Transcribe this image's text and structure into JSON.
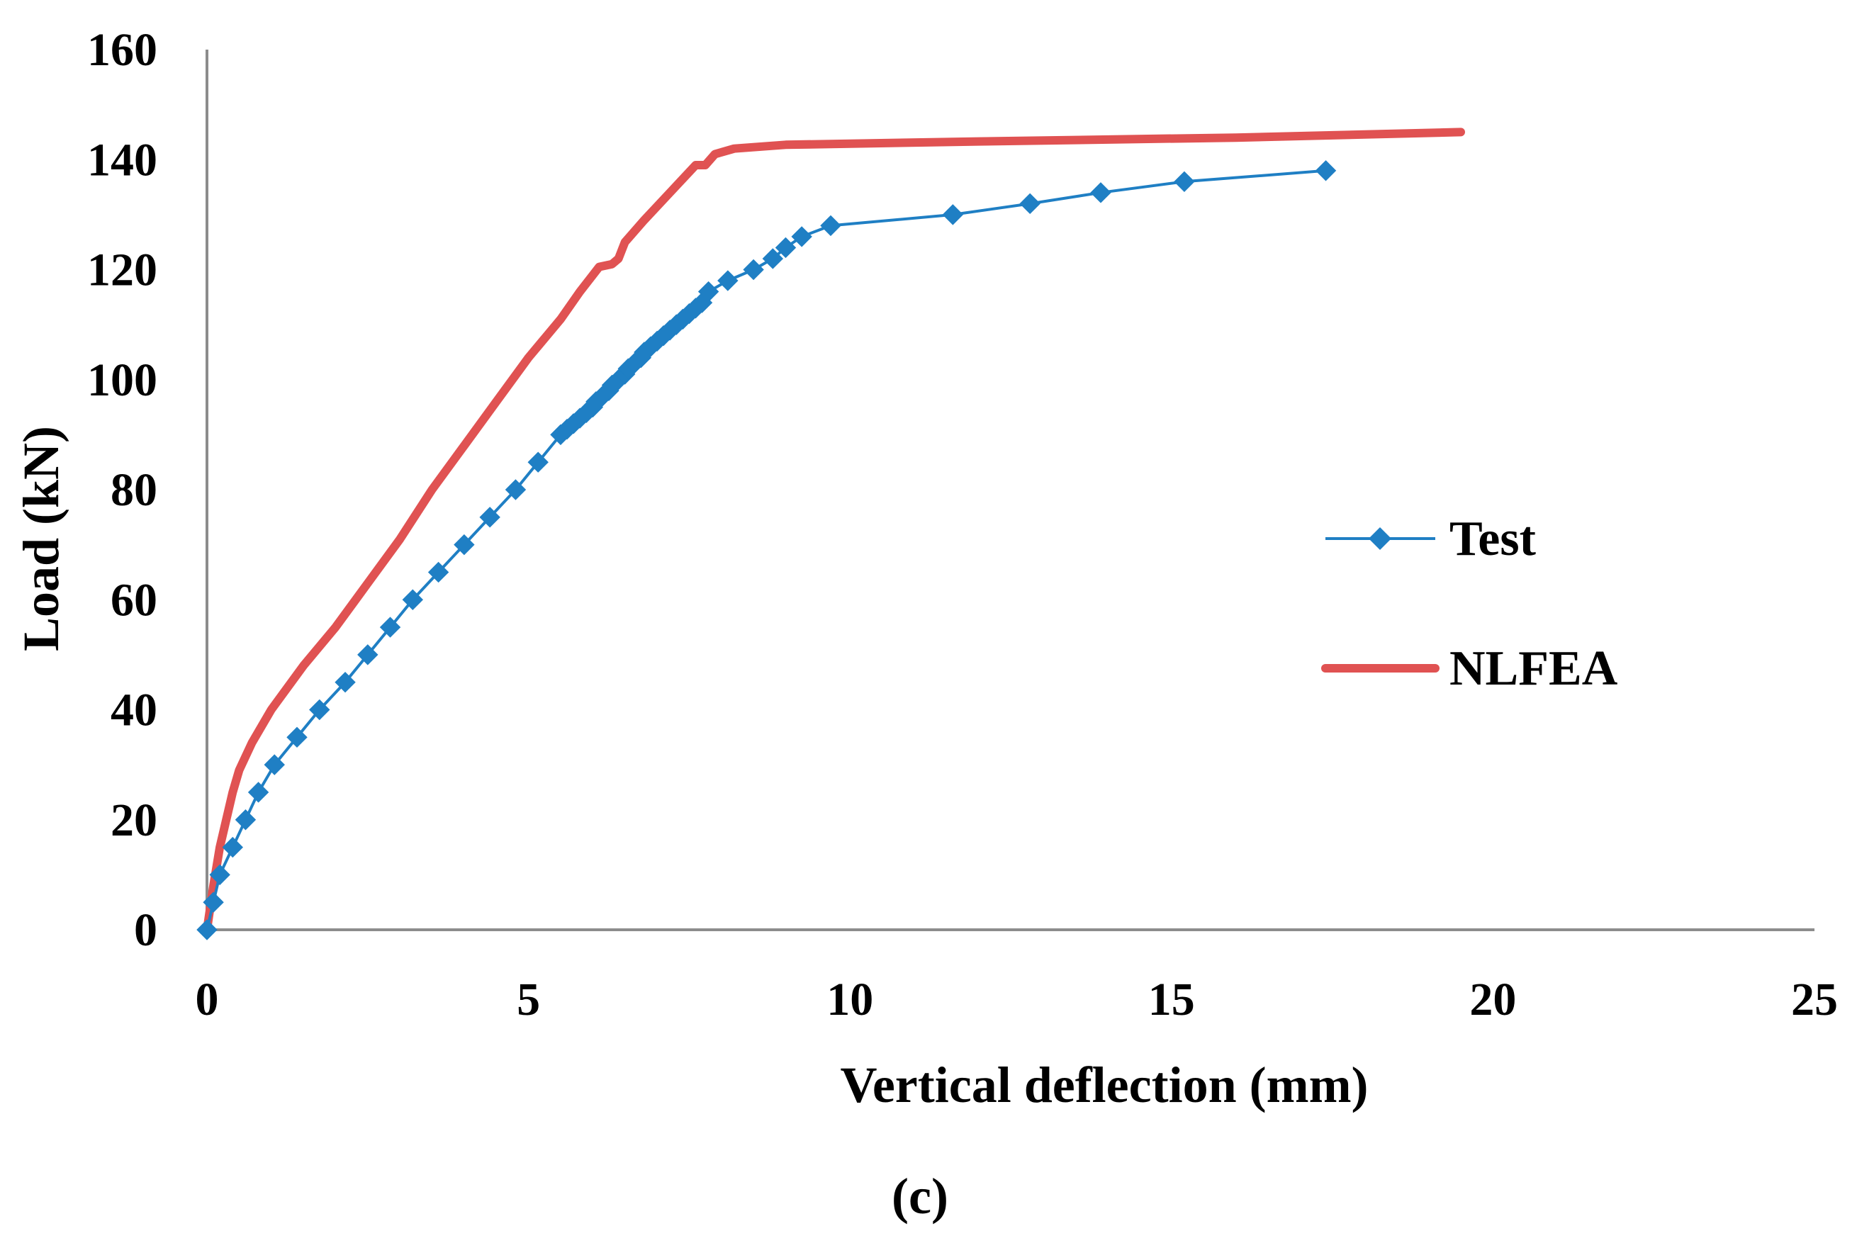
{
  "chart_data": {
    "type": "line",
    "title": "",
    "xlabel": "Vertical deflection (mm)",
    "ylabel": "Load (kN)",
    "xlim": [
      0,
      25
    ],
    "ylim": [
      0,
      160
    ],
    "xticks": [
      0,
      5,
      10,
      15,
      20,
      25
    ],
    "yticks": [
      0,
      20,
      40,
      60,
      80,
      100,
      120,
      140,
      160
    ],
    "xtick_labels": [
      "0",
      "5",
      "10",
      "15",
      "20",
      "25"
    ],
    "ytick_labels": [
      "0",
      "20",
      "40",
      "60",
      "80",
      "100",
      "120",
      "140",
      "160"
    ],
    "grid": false,
    "legend_position": "right",
    "caption": "(c)",
    "series": [
      {
        "name": "Test",
        "color": "#1f7fc4",
        "marker": "diamond",
        "points": [
          [
            0,
            0
          ],
          [
            0.1,
            5
          ],
          [
            0.2,
            10
          ],
          [
            0.4,
            15
          ],
          [
            0.6,
            20
          ],
          [
            0.8,
            25
          ],
          [
            1.05,
            30
          ],
          [
            1.4,
            35
          ],
          [
            1.75,
            40
          ],
          [
            2.15,
            45
          ],
          [
            2.5,
            50
          ],
          [
            2.85,
            55
          ],
          [
            3.2,
            60
          ],
          [
            3.6,
            65
          ],
          [
            4.0,
            70
          ],
          [
            4.4,
            75
          ],
          [
            4.8,
            80
          ],
          [
            5.15,
            85
          ],
          [
            5.5,
            90
          ],
          [
            5.6,
            91
          ],
          [
            5.7,
            92
          ],
          [
            5.8,
            93
          ],
          [
            5.9,
            94
          ],
          [
            6.0,
            95
          ],
          [
            6.05,
            96
          ],
          [
            6.15,
            97
          ],
          [
            6.25,
            98
          ],
          [
            6.3,
            99
          ],
          [
            6.4,
            100
          ],
          [
            6.5,
            101
          ],
          [
            6.55,
            102
          ],
          [
            6.65,
            103
          ],
          [
            6.75,
            104
          ],
          [
            6.8,
            105
          ],
          [
            6.9,
            106
          ],
          [
            7.0,
            107
          ],
          [
            7.1,
            108
          ],
          [
            7.2,
            109
          ],
          [
            7.3,
            110
          ],
          [
            7.4,
            111
          ],
          [
            7.5,
            112
          ],
          [
            7.6,
            113
          ],
          [
            7.7,
            114
          ],
          [
            7.8,
            116
          ],
          [
            8.1,
            118
          ],
          [
            8.5,
            120
          ],
          [
            8.8,
            122
          ],
          [
            9.0,
            124
          ],
          [
            9.25,
            126
          ],
          [
            9.7,
            128
          ],
          [
            11.6,
            130
          ],
          [
            12.8,
            132
          ],
          [
            13.9,
            134
          ],
          [
            15.2,
            136
          ],
          [
            17.4,
            138
          ]
        ]
      },
      {
        "name": "NLFEA",
        "color": "#e05252",
        "marker": "none",
        "points": [
          [
            0,
            0
          ],
          [
            0.1,
            8
          ],
          [
            0.2,
            15
          ],
          [
            0.3,
            20
          ],
          [
            0.4,
            25
          ],
          [
            0.5,
            29
          ],
          [
            0.7,
            34
          ],
          [
            1.0,
            40
          ],
          [
            1.5,
            48
          ],
          [
            2.0,
            55
          ],
          [
            2.5,
            63
          ],
          [
            3.0,
            71
          ],
          [
            3.5,
            80
          ],
          [
            4.0,
            88
          ],
          [
            4.5,
            96
          ],
          [
            5.0,
            104
          ],
          [
            5.5,
            111
          ],
          [
            5.8,
            116
          ],
          [
            6.0,
            119
          ],
          [
            6.1,
            120.5
          ],
          [
            6.3,
            121
          ],
          [
            6.4,
            122
          ],
          [
            6.5,
            125
          ],
          [
            6.8,
            129
          ],
          [
            7.2,
            134
          ],
          [
            7.6,
            139
          ],
          [
            7.75,
            139
          ],
          [
            7.9,
            141
          ],
          [
            8.2,
            142
          ],
          [
            9.0,
            142.7
          ],
          [
            12.0,
            143.3
          ],
          [
            16.0,
            144
          ],
          [
            19.5,
            145
          ]
        ]
      }
    ]
  }
}
